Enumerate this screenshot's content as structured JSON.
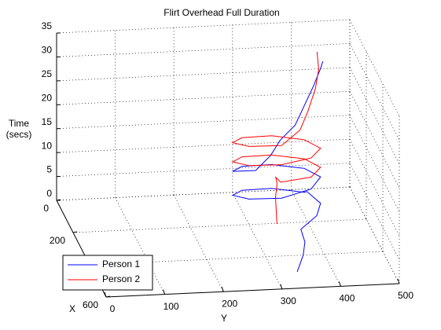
{
  "chart_data": {
    "type": "line3d",
    "title": "Flirt Overhead Full Duration",
    "xlabel": "X",
    "ylabel": "Y",
    "zlabel": [
      "Time",
      "(secs)"
    ],
    "xlim": [
      0,
      600
    ],
    "ylim": [
      0,
      500
    ],
    "zlim": [
      0,
      35
    ],
    "xticks": [
      0,
      200,
      400,
      600
    ],
    "yticks": [
      0,
      100,
      200,
      300,
      400,
      500
    ],
    "zticks": [
      0,
      5,
      10,
      15,
      20,
      25,
      30,
      35
    ],
    "grid": true,
    "legend": "lower-left",
    "series": [
      {
        "name": "Person 1",
        "color": "#0000ff",
        "x": [
          500,
          430,
          380,
          330,
          310,
          250,
          190,
          208,
          190,
          208,
          250,
          292,
          310,
          292,
          250,
          208,
          190,
          208,
          250,
          280,
          250,
          220,
          190,
          160,
          130,
          110,
          100
        ],
        "y": [
          340,
          360,
          370,
          370,
          400,
          415,
          400,
          393,
          340,
          287,
          265,
          287,
          340,
          393,
          415,
          393,
          340,
          287,
          265,
          300,
          330,
          350,
          380,
          400,
          420,
          435,
          440
        ],
        "z": [
          0,
          1,
          2,
          3,
          5,
          5.5,
          6,
          6.5,
          7,
          7.5,
          8,
          8.5,
          9,
          10,
          11,
          11.5,
          12,
          12.5,
          13,
          14,
          16,
          18,
          20,
          23,
          26,
          29,
          30
        ]
      },
      {
        "name": "Person 2",
        "color": "#ff0000",
        "x": [
          204,
          210,
          215,
          220,
          240,
          300,
          292,
          250,
          208,
          190,
          208,
          250,
          292,
          310,
          292,
          250,
          208,
          190,
          208,
          250,
          292,
          310,
          250,
          200,
          150,
          120,
          100
        ],
        "y": [
          347,
          345,
          343,
          345,
          340,
          340,
          393,
          415,
          393,
          340,
          287,
          265,
          287,
          340,
          393,
          415,
          393,
          340,
          287,
          265,
          287,
          340,
          380,
          400,
          420,
          430,
          430
        ],
        "z": [
          0,
          3,
          6,
          9,
          11,
          12,
          12.5,
          13,
          13.5,
          14,
          14.5,
          15,
          15.5,
          16,
          16.5,
          17,
          17.5,
          18,
          18.5,
          19,
          19.5,
          20,
          21,
          23,
          26,
          29,
          32
        ]
      }
    ]
  }
}
